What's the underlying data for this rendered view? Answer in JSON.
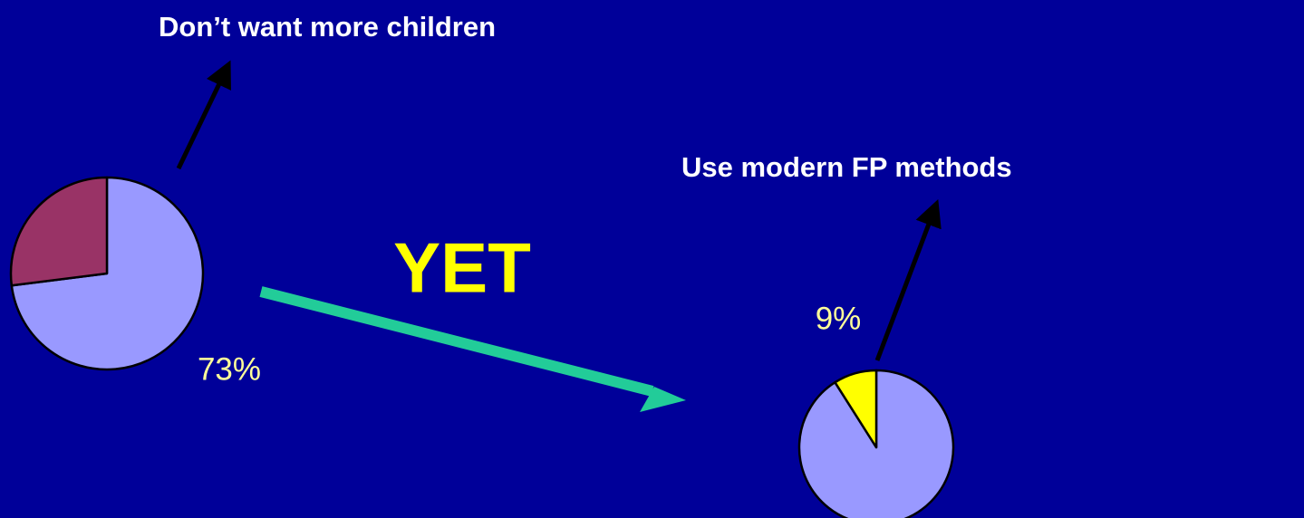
{
  "chart_data": [
    {
      "type": "pie",
      "title": "Don’t want more children",
      "values": [
        73,
        27
      ],
      "value_labels": [
        "73%",
        null
      ],
      "colors": [
        "#9999ff",
        "#993366"
      ]
    },
    {
      "type": "pie",
      "title": "Use modern FP methods",
      "values": [
        91,
        9
      ],
      "value_labels": [
        null,
        "9%"
      ],
      "colors": [
        "#9999ff",
        "#ffff00"
      ]
    }
  ],
  "connector_label": "YET"
}
